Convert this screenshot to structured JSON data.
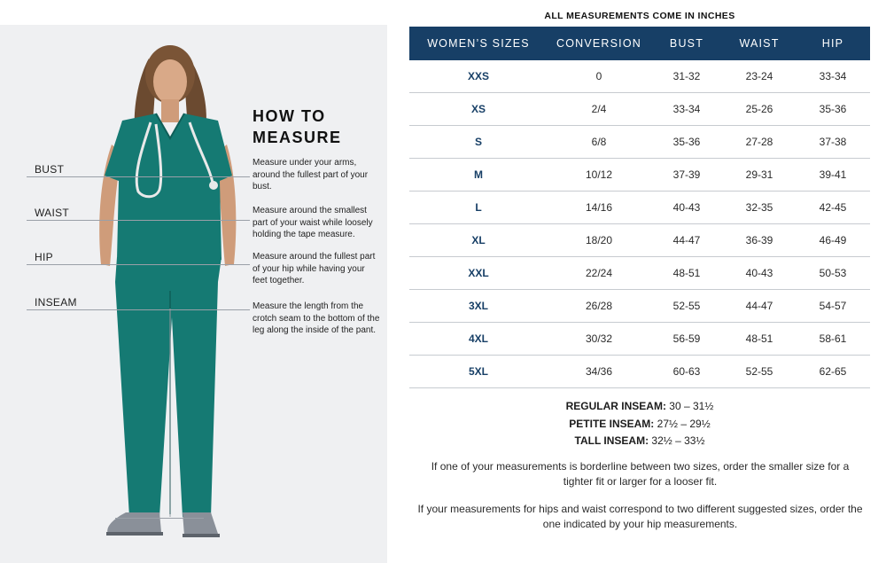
{
  "left": {
    "how_to_title_line1": "HOW TO",
    "how_to_title_line2": "MEASURE",
    "labels": {
      "bust": "BUST",
      "waist": "WAIST",
      "hip": "HIP",
      "inseam": "INSEAM"
    },
    "instructions": {
      "bust": "Measure under your arms, around the fullest part of your bust.",
      "waist": "Measure around the smallest part of your waist while loosely holding the tape measure.",
      "hip": "Measure around the fullest part of your hip while having your feet together.",
      "inseam": "Measure the length from the crotch seam to the bottom of the leg along the inside of the pant."
    }
  },
  "table": {
    "caption": "ALL MEASUREMENTS COME IN INCHES",
    "headers": [
      "WOMEN’S SIZES",
      "CONVERSION",
      "BUST",
      "WAIST",
      "HIP"
    ],
    "rows": [
      [
        "XXS",
        "0",
        "31-32",
        "23-24",
        "33-34"
      ],
      [
        "XS",
        "2/4",
        "33-34",
        "25-26",
        "35-36"
      ],
      [
        "S",
        "6/8",
        "35-36",
        "27-28",
        "37-38"
      ],
      [
        "M",
        "10/12",
        "37-39",
        "29-31",
        "39-41"
      ],
      [
        "L",
        "14/16",
        "40-43",
        "32-35",
        "42-45"
      ],
      [
        "XL",
        "18/20",
        "44-47",
        "36-39",
        "46-49"
      ],
      [
        "XXL",
        "22/24",
        "48-51",
        "40-43",
        "50-53"
      ],
      [
        "3XL",
        "26/28",
        "52-55",
        "44-47",
        "54-57"
      ],
      [
        "4XL",
        "30/32",
        "56-59",
        "48-51",
        "58-61"
      ],
      [
        "5XL",
        "34/36",
        "60-63",
        "52-55",
        "62-65"
      ]
    ]
  },
  "inseam": {
    "regular_label": "REGULAR INSEAM:",
    "regular_value": " 30  – 31½",
    "petite_label": "PETITE INSEAM:",
    "petite_value": " 27½ – 29½",
    "tall_label": "TALL INSEAM:",
    "tall_value": " 32½ – 33½"
  },
  "notes": {
    "borderline": "If one of your measurements is borderline between two sizes, order the smaller size for a tighter fit or larger for a looser fit.",
    "hips_waist": "If your measurements for hips and waist correspond to two different suggested sizes, order the one indicated by your hip measurements."
  },
  "colors": {
    "header_bg": "#173f66",
    "size_text": "#173f66",
    "scrubs": "#157a73",
    "panel_bg": "#eff0f2"
  }
}
